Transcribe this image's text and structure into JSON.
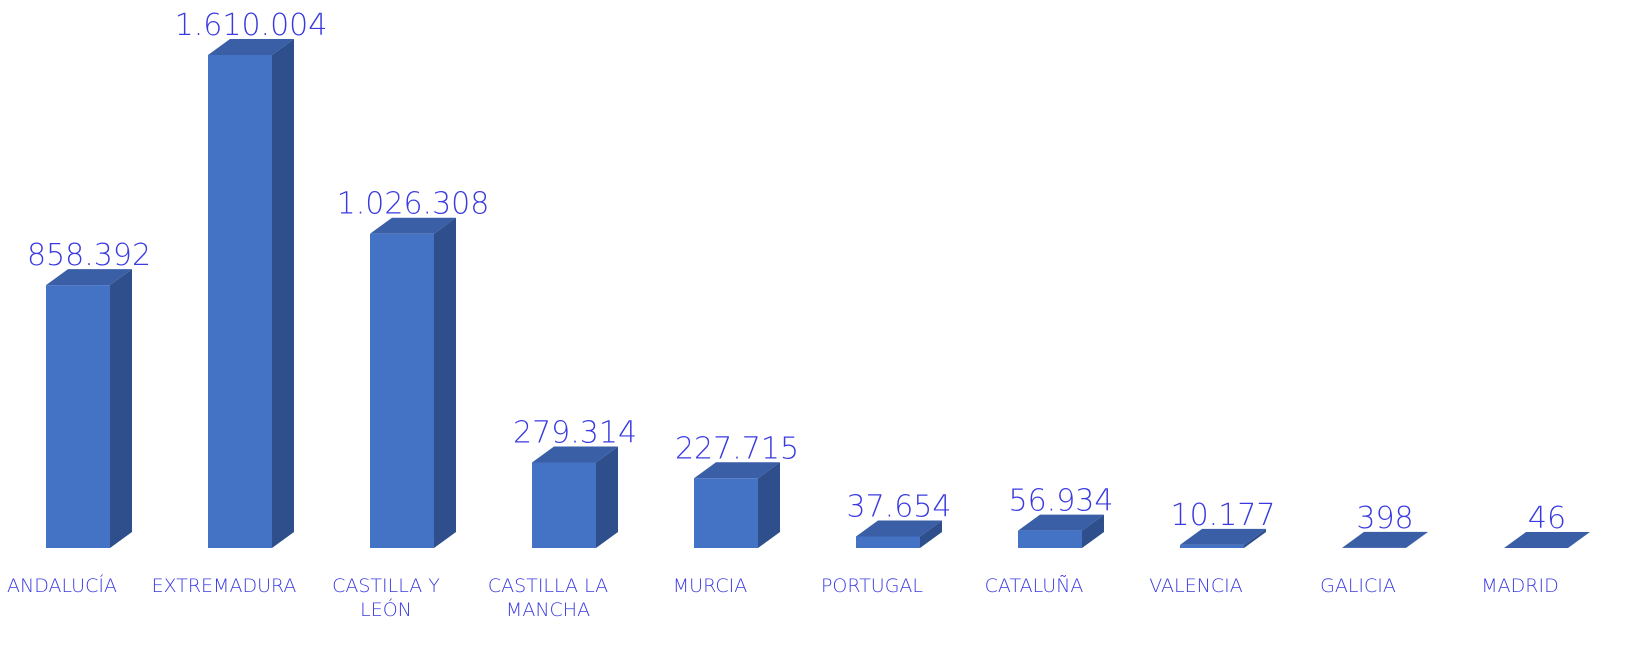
{
  "chart_data": {
    "type": "bar3d",
    "categories": [
      "ANDALUCÍA",
      "EXTREMADURA",
      "CASTILLA Y LEÓN",
      "CASTILLA LA MANCHA",
      "MURCIA",
      "PORTUGAL",
      "CATALUÑA",
      "VALENCIA",
      "GALICIA",
      "MADRID"
    ],
    "values": [
      858392,
      1610004,
      1026308,
      279314,
      227715,
      37654,
      56934,
      10177,
      398,
      46
    ],
    "value_labels": [
      "858.392",
      "1.610.004",
      "1.026.308",
      "279.314",
      "227.715",
      "37.654",
      "56.934",
      "10.177",
      "398",
      "46"
    ],
    "color": "#4472c4"
  }
}
